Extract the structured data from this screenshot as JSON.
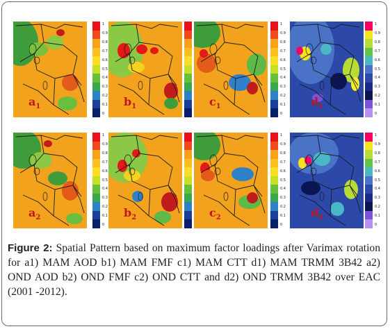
{
  "colorbar_ticks": [
    "1",
    "0.9",
    "0.8",
    "0.7",
    "0.6",
    "0.5",
    "0.4",
    "0.3",
    "0.2",
    "0.1",
    "0"
  ],
  "palettes": {
    "warm": [
      "#e8101a",
      "#f04a1a",
      "#f7a11c",
      "#f9bf1f",
      "#fade25",
      "#c8df2a",
      "#67bf3a",
      "#38a84a",
      "#2e80c8",
      "#1a3f9a",
      "#0a1f6a"
    ],
    "trmm": [
      "#f90063",
      "#f7e21c",
      "#b7dc34",
      "#5fc64a",
      "#4ab7c6",
      "#4a73c8",
      "#2c48a8",
      "#1a2b86",
      "#0b1552",
      "#7a55d8",
      "#b890f0"
    ]
  },
  "panels": [
    {
      "id": "a1",
      "letter": "a",
      "sub": "1",
      "style": "warm"
    },
    {
      "id": "b1",
      "letter": "b",
      "sub": "1",
      "style": "warm"
    },
    {
      "id": "c1",
      "letter": "c",
      "sub": "1",
      "style": "warm"
    },
    {
      "id": "d1",
      "letter": "d",
      "sub": "1",
      "style": "trmm"
    },
    {
      "id": "a2",
      "letter": "a",
      "sub": "2",
      "style": "warm"
    },
    {
      "id": "b2",
      "letter": "b",
      "sub": "2",
      "style": "warm"
    },
    {
      "id": "c2",
      "letter": "c",
      "sub": "2",
      "style": "warm"
    },
    {
      "id": "d2",
      "letter": "d",
      "sub": "2",
      "style": "trmm"
    }
  ],
  "caption": {
    "label": "Figure 2:",
    "text": " Spatial Pattern based on maximum factor loadings after Varimax rotation for a1) MAM AOD b1) MAM FMF c1) MAM CTT d1) MAM TRMM 3B42 a2) OND AOD b2) OND FMF c2) OND CTT and d2) OND TRMM 3B42 over EAC (2001 -2012)."
  }
}
